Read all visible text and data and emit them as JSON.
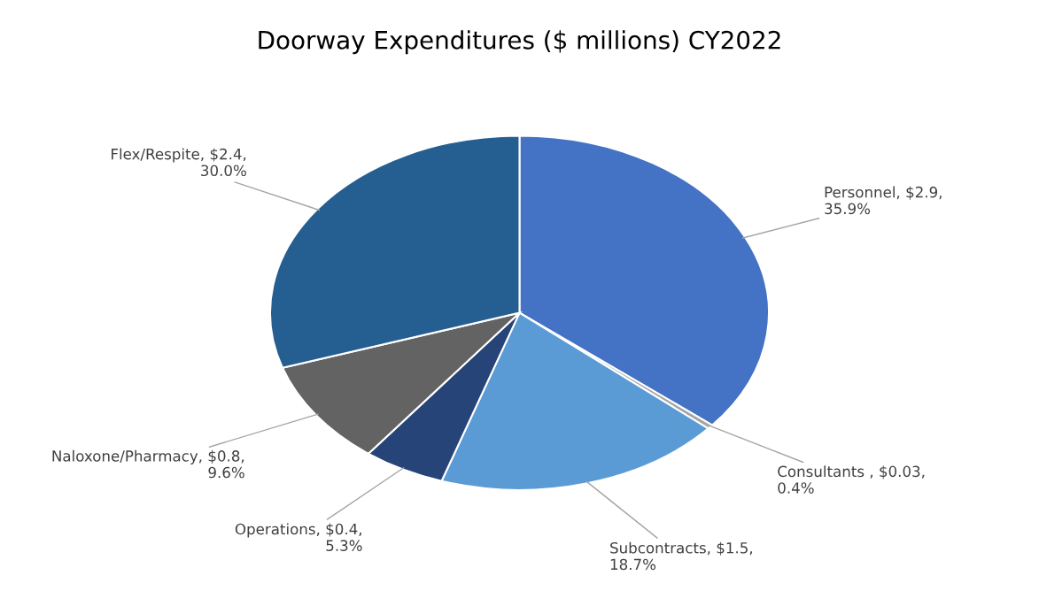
{
  "chart_data": {
    "type": "pie",
    "title": "Doorway Expenditures ($ millions) CY2022",
    "categories": [
      "Personnel",
      "Consultants ",
      "Subcontracts",
      "Operations",
      "Naloxone/Pharmacy",
      "Flex/Respite"
    ],
    "values": [
      35.9,
      0.4,
      18.7,
      5.3,
      9.6,
      30.0
    ],
    "value_labels": [
      "$2.9, 35.9%",
      "$0.03, 0.4%",
      "$1.5, 18.7%",
      "$0.4, 5.3%",
      "$0.8, 9.6%",
      "$2.4, 30.0%"
    ],
    "colors": [
      "#4472c4",
      "#a5a5a5",
      "#5b9bd5",
      "#264478",
      "#636363",
      "#255e91"
    ],
    "legend": false
  }
}
